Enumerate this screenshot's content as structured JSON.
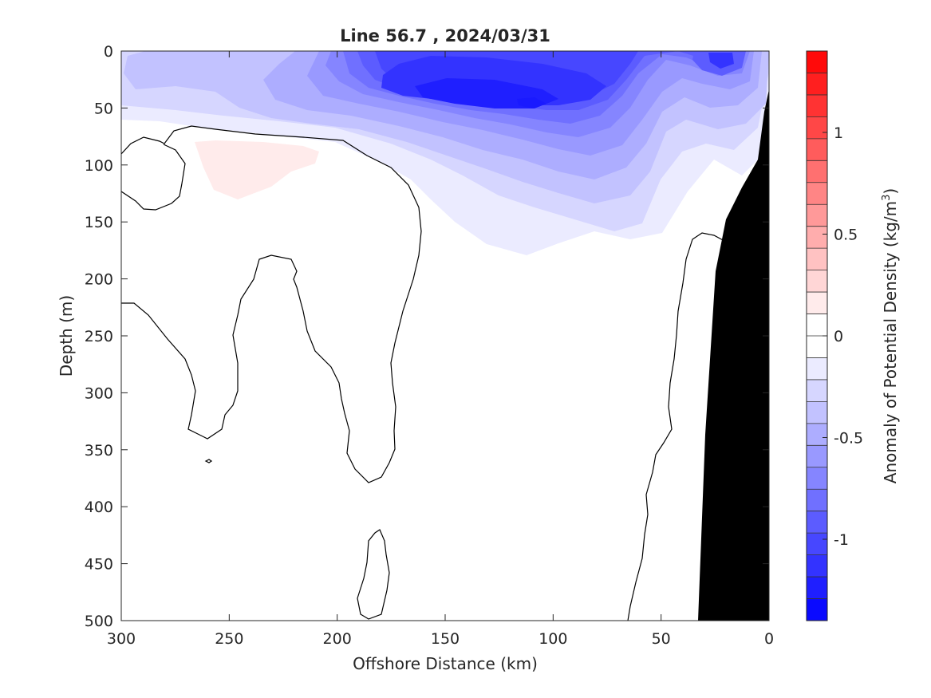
{
  "chart_data": {
    "type": "contour",
    "title": "Line 56.7 , 2024/03/31",
    "xlabel": "Offshore Distance (km)",
    "ylabel": "Depth (m)",
    "x_direction": "reversed",
    "y_direction": "reversed",
    "xlim": [
      0,
      300
    ],
    "ylim": [
      0,
      500
    ],
    "x_ticks": [
      300,
      250,
      200,
      150,
      100,
      50,
      0
    ],
    "y_ticks": [
      0,
      50,
      100,
      150,
      200,
      250,
      300,
      350,
      400,
      450,
      500
    ],
    "colorbar": {
      "label_main": "Anomaly of Potential Density (kg/m",
      "label_sup": "3",
      "label_close": ")",
      "range": [
        -1.4,
        1.4
      ],
      "step": 0.1,
      "ticks": [
        1,
        0.5,
        0,
        -0.5,
        -1
      ],
      "tick_labels": [
        "1",
        "0.5",
        "0",
        "-0.5",
        "-1"
      ],
      "colors_bottom_to_top": [
        "#0a0aff",
        "#1f1fff",
        "#3333ff",
        "#4747ff",
        "#5c5cff",
        "#7070ff",
        "#8585ff",
        "#9999ff",
        "#adadff",
        "#c2c2ff",
        "#d6d6ff",
        "#ebebff",
        "#ffffff",
        "#ffffff",
        "#ffebeb",
        "#ffd6d6",
        "#ffc2c2",
        "#ffadad",
        "#ff9999",
        "#ff8585",
        "#ff7070",
        "#ff5c5c",
        "#ff4747",
        "#ff3333",
        "#ff1f1f",
        "#ff0a0a"
      ]
    },
    "regions": [
      {
        "name": "surface-negative-anomaly",
        "min_value": -1.25,
        "center_km": 110,
        "center_depth_m": 45,
        "core_km_range": [
          90,
          170
        ],
        "core_depth_range_m": [
          15,
          60
        ]
      },
      {
        "name": "nearshore-negative-anomaly",
        "min_value": -1.1,
        "center_km": 22,
        "center_depth_m": 10
      },
      {
        "name": "subsurface-positive-anomaly",
        "max_value": 0.1,
        "km_range": [
          210,
          265
        ],
        "depth_range_m": [
          78,
          128
        ]
      }
    ],
    "zero_contour_color": "#000000",
    "bottom_fill_color": "#000000"
  }
}
